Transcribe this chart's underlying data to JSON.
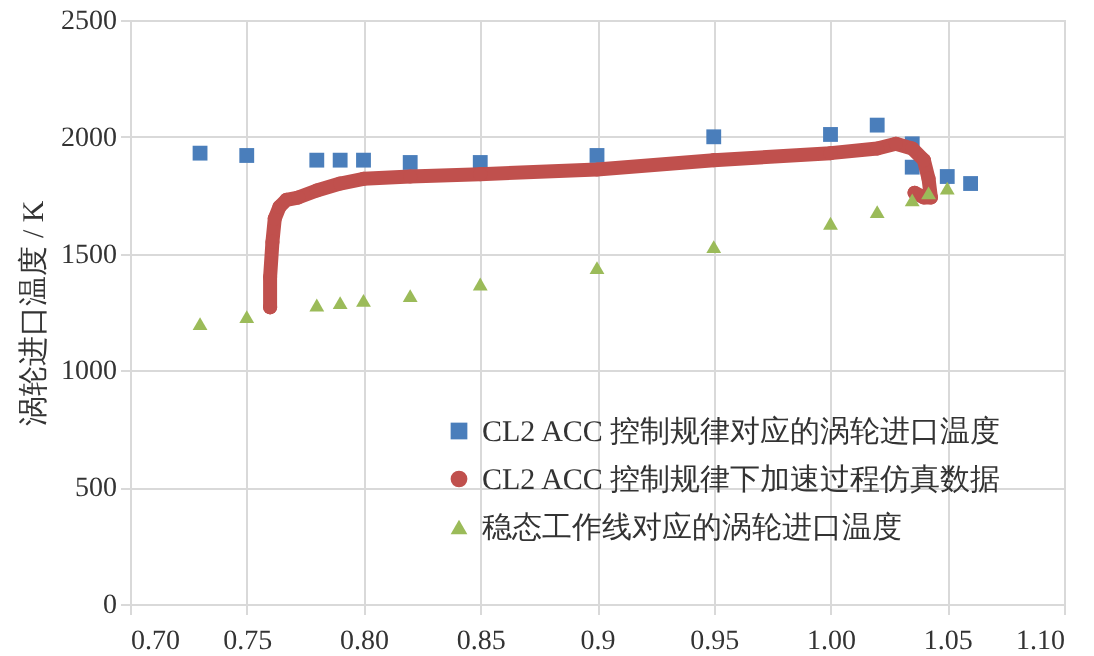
{
  "chart_data": {
    "type": "scatter",
    "ylabel": "涡轮进口温度 / K",
    "xlim": [
      0.7,
      1.1
    ],
    "xticks": [
      {
        "value": 0.7,
        "label": "0.70"
      },
      {
        "value": 0.75,
        "label": "0.75"
      },
      {
        "value": 0.8,
        "label": "0.80"
      },
      {
        "value": 0.85,
        "label": "0.85"
      },
      0.9,
      {
        "value": 0.95,
        "label": "0.95"
      },
      {
        "value": 1.0,
        "label": "1.00"
      },
      {
        "value": 1.05,
        "label": "1.05"
      },
      {
        "value": 1.1,
        "label": "1.10"
      }
    ],
    "ylim": [
      0,
      2500
    ],
    "yticks": [
      0,
      500,
      1000,
      1500,
      2000,
      2500
    ],
    "grid": true,
    "legend": "bottom right",
    "series": [
      {
        "name": "CL2 ACC 控制规律对应的涡轮进口温度",
        "marker": "square",
        "color": "#4a7ebb",
        "x": [
          0.73,
          0.75,
          0.78,
          0.79,
          0.8,
          0.82,
          0.85,
          0.9,
          0.95,
          1.0,
          1.02,
          1.035,
          1.035,
          1.05,
          1.06
        ],
        "values": [
          1930,
          1920,
          1900,
          1900,
          1900,
          1890,
          1890,
          1920,
          2000,
          2010,
          2050,
          1970,
          1870,
          1830,
          1800
        ]
      },
      {
        "name": "CL2 ACC 控制规律下加速过程仿真数据",
        "type": "line",
        "marker": "circle",
        "color": "#c0504d",
        "x": [
          0.76,
          0.76,
          0.761,
          0.762,
          0.764,
          0.767,
          0.772,
          0.78,
          0.79,
          0.8,
          0.82,
          0.85,
          0.9,
          0.95,
          1.0,
          1.02,
          1.028,
          1.035,
          1.04,
          1.042,
          1.043,
          1.04,
          1.036
        ],
        "values": [
          1270,
          1400,
          1550,
          1650,
          1700,
          1730,
          1740,
          1770,
          1800,
          1820,
          1830,
          1840,
          1860,
          1900,
          1930,
          1950,
          1970,
          1950,
          1900,
          1820,
          1740,
          1740,
          1760
        ]
      },
      {
        "name": "稳态工作线对应的涡轮进口温度",
        "marker": "triangle",
        "color": "#9bbb59",
        "x": [
          0.73,
          0.75,
          0.78,
          0.79,
          0.8,
          0.82,
          0.85,
          0.9,
          0.95,
          1.0,
          1.02,
          1.035,
          1.042,
          1.05
        ],
        "values": [
          1200,
          1230,
          1280,
          1290,
          1300,
          1320,
          1370,
          1440,
          1530,
          1630,
          1680,
          1730,
          1760,
          1780
        ]
      }
    ]
  }
}
